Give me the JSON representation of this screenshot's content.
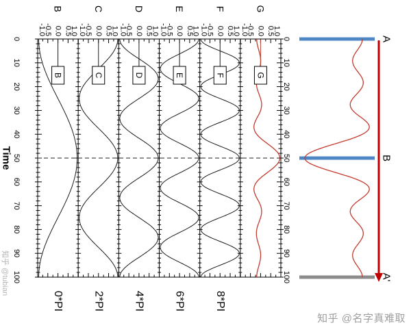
{
  "chart_data": {
    "type": "line",
    "rotated_90_clockwise": true,
    "xlabel": "Time",
    "x_range": [
      0,
      100
    ],
    "x_major_ticks": [
      0,
      10,
      20,
      30,
      40,
      50,
      60,
      70,
      80,
      90,
      100
    ],
    "x_minor_step": 2,
    "y_range": [
      -1,
      1
    ],
    "y_tick_values": [
      -1,
      -0.5,
      0,
      0.5,
      1
    ],
    "y_tick_labels": [
      "-1.0",
      "-0.5",
      "0.0",
      "0.5",
      "1.0"
    ],
    "dashed_marker_time": 50,
    "panels": [
      {
        "label": "B",
        "annotation": "0*PI",
        "cycles_over_range": 1,
        "peak_at": 50,
        "color": "#1a1a1a"
      },
      {
        "label": "C",
        "annotation": "2*PI",
        "cycles_over_range": 2,
        "peak_at": 50,
        "color": "#1a1a1a"
      },
      {
        "label": "D",
        "annotation": "4*PI",
        "cycles_over_range": 3,
        "peak_at": 50,
        "color": "#1a1a1a"
      },
      {
        "label": "E",
        "annotation": "6*PI",
        "cycles_over_range": 4,
        "peak_at": 50,
        "color": "#1a1a1a"
      },
      {
        "label": "F",
        "annotation": "8*PI",
        "cycles_over_range": 5,
        "peak_at": 50,
        "color": "#1a1a1a"
      },
      {
        "label": "G",
        "annotation": "",
        "series": "normalized_sum_of_B_to_F",
        "color": "#c23b2e"
      }
    ],
    "schematic": {
      "markers": [
        {
          "label": "A",
          "time": 0,
          "color": "#4e87c5"
        },
        {
          "label": "B",
          "time": 50,
          "color": "#4e87c5"
        },
        {
          "label": "A'",
          "time": 100,
          "color": "#8c8c8c"
        }
      ],
      "arrow": {
        "from_time": 0,
        "to_time": 100,
        "color": "#c00000"
      },
      "packet_series": "G",
      "packet_color": "#c23b2e"
    }
  },
  "watermarks": {
    "side": "知乎 @tubian",
    "corner": "知乎 @名字真难取"
  }
}
